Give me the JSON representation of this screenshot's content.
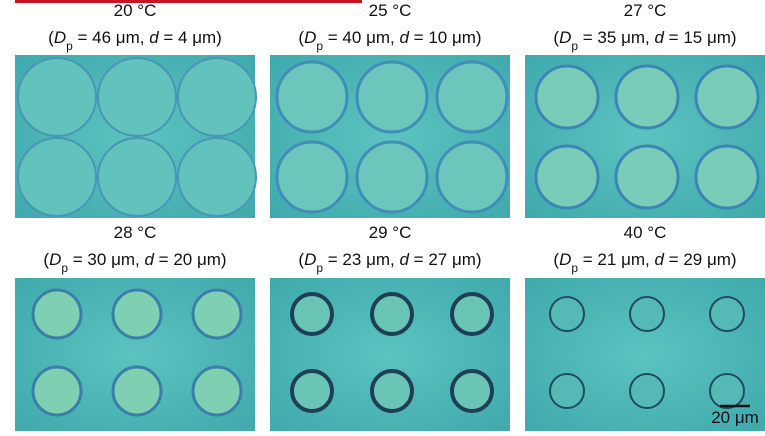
{
  "panels": [
    {
      "temperature": "20 °C",
      "caption": [
        "(",
        "D",
        "p",
        " = 46 μm, ",
        "d",
        " = 4 μm)"
      ]
    },
    {
      "temperature": "25 °C",
      "caption": [
        "(",
        "D",
        "p",
        " = 40 μm, ",
        "d",
        " = 10 μm)"
      ]
    },
    {
      "temperature": "27 °C",
      "caption": [
        "(",
        "D",
        "p",
        " = 35 μm, ",
        "d",
        " = 15 μm)"
      ]
    },
    {
      "temperature": "28 °C",
      "caption": [
        "(",
        "D",
        "p",
        " = 30 μm, ",
        "d",
        " = 20 μm)"
      ]
    },
    {
      "temperature": "29 °C",
      "caption": [
        "(",
        "D",
        "p",
        " = 23 μm, ",
        "d",
        " = 27 μm)"
      ]
    },
    {
      "temperature": "40 °C",
      "caption": [
        "(",
        "D",
        "p",
        " = 21 μm, ",
        "d",
        " = 29 μm)"
      ]
    }
  ],
  "scale_bar": "20 μm"
}
